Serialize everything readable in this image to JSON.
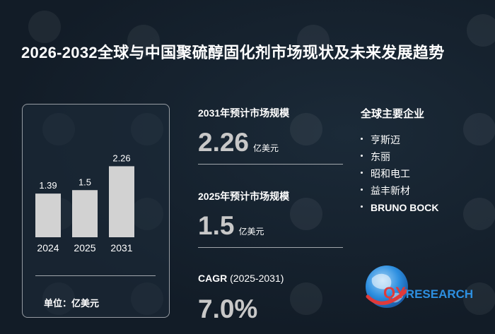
{
  "title": "2026-2032全球与中国聚硫醇固化剂市场现状及未来发展趋势",
  "chart_data": {
    "type": "bar",
    "categories": [
      "2024",
      "2025",
      "2031"
    ],
    "values": [
      1.39,
      1.5,
      2.26
    ],
    "value_labels": [
      "1.39",
      "1.5",
      "2.26"
    ],
    "unit_label": "单位：亿美元",
    "bar_color": "#d2d2d2"
  },
  "kpi_2031": {
    "label": "2031年预计市场规模",
    "value": "2.26",
    "unit": "亿美元"
  },
  "kpi_2025": {
    "label": "2025年预计市场规模",
    "value": "1.5",
    "unit": "亿美元"
  },
  "cagr": {
    "label_bold": "CAGR",
    "label_period": " (2025-2031)",
    "value": "7.0%"
  },
  "companies": {
    "title": "全球主要企业",
    "items": [
      "亨斯迈",
      "东丽",
      "昭和电工",
      "益丰新材",
      "BRUNO BOCK"
    ]
  },
  "logo": {
    "mark": "QY",
    "text": "RESEARCH"
  },
  "colors": {
    "background": "#14202c",
    "value_gray": "#c8c8c8",
    "brand_blue": "#2d8fe0",
    "brand_red": "#e03a3a"
  }
}
